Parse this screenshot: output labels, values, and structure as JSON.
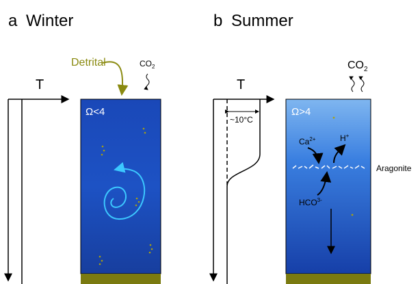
{
  "panels": [
    {
      "letter": "a",
      "title": "Winter",
      "axis_label": "T",
      "source_label": "Detrital",
      "gas": {
        "text": "CO",
        "sub": "2"
      },
      "saturation": "Ω<4"
    },
    {
      "letter": "b",
      "title": "Summer",
      "axis_label": "T",
      "delta_label": "~10°C",
      "gas": {
        "text": "CO",
        "sub": "2"
      },
      "saturation": "Ω>4",
      "ions": [
        {
          "text": "Ca",
          "sup": "2+"
        },
        {
          "text": "H",
          "sup": "+"
        },
        {
          "text": "HCO",
          "sup": "3-"
        }
      ],
      "mineral": "Aragonite"
    }
  ]
}
